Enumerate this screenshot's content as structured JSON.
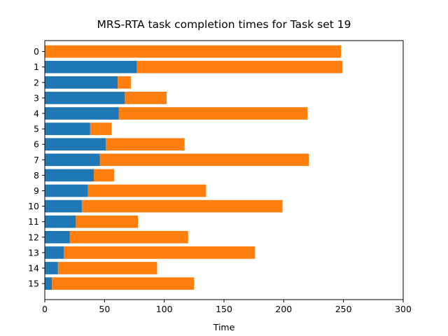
{
  "chart_data": {
    "type": "bar",
    "orientation": "horizontal",
    "stacked": true,
    "title": "MRS-RTA task completion times for Task set 19",
    "xlabel": "Time",
    "ylabel": "",
    "xlim": [
      0,
      300
    ],
    "x_ticks": [
      "0",
      "50",
      "100",
      "150",
      "200",
      "250",
      "300"
    ],
    "categories": [
      "0",
      "1",
      "2",
      "3",
      "4",
      "5",
      "6",
      "7",
      "8",
      "9",
      "10",
      "11",
      "12",
      "13",
      "14",
      "15"
    ],
    "series": [
      {
        "color": "#1f77b4",
        "values": [
          0,
          77,
          61,
          67,
          62,
          38,
          51,
          46,
          41,
          36,
          31,
          26,
          21,
          16,
          11,
          6
        ]
      },
      {
        "color": "#ff7f0e",
        "values": [
          248,
          172,
          11,
          35,
          158,
          18,
          66,
          175,
          17,
          99,
          168,
          52,
          99,
          160,
          83,
          119
        ]
      }
    ],
    "grid": false,
    "legend": "none"
  }
}
